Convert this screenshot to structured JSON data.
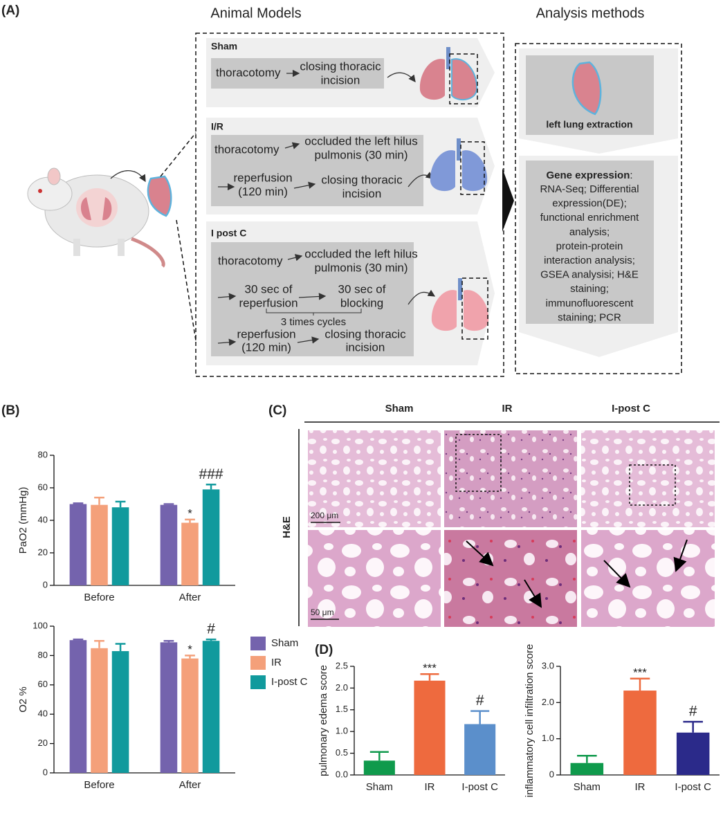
{
  "panel_a": {
    "label": "(A)",
    "models_title": "Animal Models",
    "methods_title": "Analysis methods",
    "sham": {
      "name": "Sham",
      "step1": "thoracotomy",
      "step2": [
        "closing thoracic",
        "incision"
      ]
    },
    "ir": {
      "name": "I/R",
      "step1": "thoracotomy",
      "step2": [
        "occluded the left hilus",
        "pulmonis  (30 min)"
      ],
      "step3": [
        "reperfusion",
        "(120 min)"
      ],
      "step4": [
        "closing thoracic",
        "incision"
      ]
    },
    "ipostc": {
      "name": "I post C",
      "step1": "thoracotomy",
      "step2": [
        "occluded the left hilus",
        "pulmonis  (30 min)"
      ],
      "step3": [
        "30 sec of",
        "reperfusion"
      ],
      "step4": [
        "30 sec of",
        "blocking"
      ],
      "cycle": "3 times cycles",
      "step5": [
        "reperfusion",
        "(120 min)"
      ],
      "step6": [
        "closing thoracic",
        "incision"
      ]
    },
    "extraction": "left lung extraction",
    "gene_title": "Gene expression",
    "gene_colon": ":",
    "gene_lines": [
      "RNA-Seq; Differential",
      "expression(DE);",
      "functional enrichment",
      "analysis;",
      "protein-protein",
      "interaction analysis;",
      "GSEA analysisi; H&E",
      "staining;",
      "immunofluorescent",
      "staining; PCR"
    ]
  },
  "panel_b": {
    "label": "(B)"
  },
  "panel_c": {
    "label": "(C)",
    "columns": [
      "Sham",
      "IR",
      "I-post C"
    ],
    "row_label": "H&E",
    "scale_top": "200 μm",
    "scale_bottom": "50 μm"
  },
  "panel_d": {
    "label": "(D)"
  },
  "chart_data": [
    {
      "type": "bar",
      "ylabel": "PaO2 (mmHg)",
      "categories": [
        "Before",
        "After"
      ],
      "series": [
        {
          "color": "#7463ad",
          "values": [
            50,
            49.5
          ],
          "errors": [
            0.5,
            0.5
          ],
          "annotations": [
            null,
            null
          ]
        },
        {
          "color": "#f4a07a",
          "values": [
            49.5,
            38.5
          ],
          "errors": [
            4.5,
            2
          ],
          "annotations": [
            null,
            "*"
          ]
        },
        {
          "color": "#119a9d",
          "values": [
            48,
            59
          ],
          "errors": [
            3.5,
            3
          ],
          "annotations": [
            null,
            "###"
          ]
        }
      ],
      "ylim": [
        0,
        80
      ],
      "yticks": [
        0,
        20,
        40,
        60,
        80
      ]
    },
    {
      "type": "bar",
      "ylabel": "O2 %",
      "categories": [
        "Before",
        "After"
      ],
      "series": [
        {
          "name": "Sham",
          "color": "#7463ad",
          "values": [
            90.5,
            89
          ],
          "errors": [
            0.5,
            1
          ],
          "annotations": [
            null,
            null
          ]
        },
        {
          "name": "IR",
          "color": "#f4a07a",
          "values": [
            85,
            78
          ],
          "errors": [
            5,
            2
          ],
          "annotations": [
            null,
            "*"
          ]
        },
        {
          "name": "I-post C",
          "color": "#119a9d",
          "values": [
            83,
            90
          ],
          "errors": [
            5,
            1
          ],
          "annotations": [
            null,
            "#"
          ]
        }
      ],
      "ylim": [
        0,
        100
      ],
      "yticks": [
        0,
        20,
        40,
        60,
        80,
        100
      ],
      "legend": "right"
    },
    {
      "type": "bar",
      "ylabel": "pulmonary edema score",
      "categories": [
        "Sham",
        "IR",
        "I-post C"
      ],
      "values": [
        0.33,
        2.17,
        1.17
      ],
      "errors": [
        0.2,
        0.15,
        0.3
      ],
      "colors": [
        "#0f9a4c",
        "#ee6a3e",
        "#5b8fcb"
      ],
      "annotations": [
        null,
        "***",
        "#"
      ],
      "ylim": [
        0,
        2.5
      ],
      "yticks": [
        {
          "value": 0,
          "label": "0.0"
        },
        0.5,
        {
          "value": 1,
          "label": "1.0"
        },
        1.5,
        {
          "value": 2,
          "label": "2.0"
        },
        2.5
      ]
    },
    {
      "type": "bar",
      "ylabel": "inflammatory cell infiltration score",
      "categories": [
        "Sham",
        "IR",
        "I-post C"
      ],
      "values": [
        0.33,
        2.33,
        1.17
      ],
      "errors": [
        0.2,
        0.33,
        0.3
      ],
      "colors": [
        "#0f9a4c",
        "#ee6a3e",
        "#2b2a8a"
      ],
      "annotations": [
        null,
        "***",
        "#"
      ],
      "ylim": [
        0,
        3
      ],
      "yticks": [
        0,
        {
          "value": 1,
          "label": "1.0"
        },
        {
          "value": 2,
          "label": "2.0"
        },
        {
          "value": 3,
          "label": "3.0"
        }
      ]
    }
  ]
}
